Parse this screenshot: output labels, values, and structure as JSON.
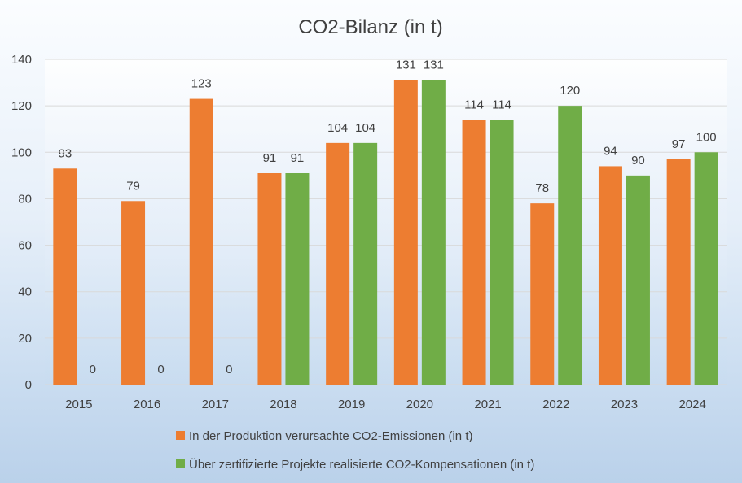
{
  "chart_data": {
    "type": "bar",
    "title": "CO2-Bilanz (in t)",
    "categories": [
      "2015",
      "2016",
      "2017",
      "2018",
      "2019",
      "2020",
      "2021",
      "2022",
      "2023",
      "2024"
    ],
    "series": [
      {
        "name": "In der Produktion verursachte CO2-Emissionen (in t)",
        "color": "#ed7d31",
        "values": [
          93,
          79,
          123,
          91,
          104,
          131,
          114,
          78,
          94,
          97
        ]
      },
      {
        "name": "Über zertifizierte Projekte realisierte CO2-Kompensationen (in t)",
        "color": "#70ad47",
        "values": [
          0,
          0,
          0,
          91,
          104,
          131,
          114,
          120,
          90,
          100
        ]
      }
    ],
    "ylim": [
      0,
      140
    ],
    "yticks": [
      0,
      20,
      40,
      60,
      80,
      100,
      120,
      140
    ],
    "grid": true,
    "legend": "bottom",
    "data_labels": true
  }
}
